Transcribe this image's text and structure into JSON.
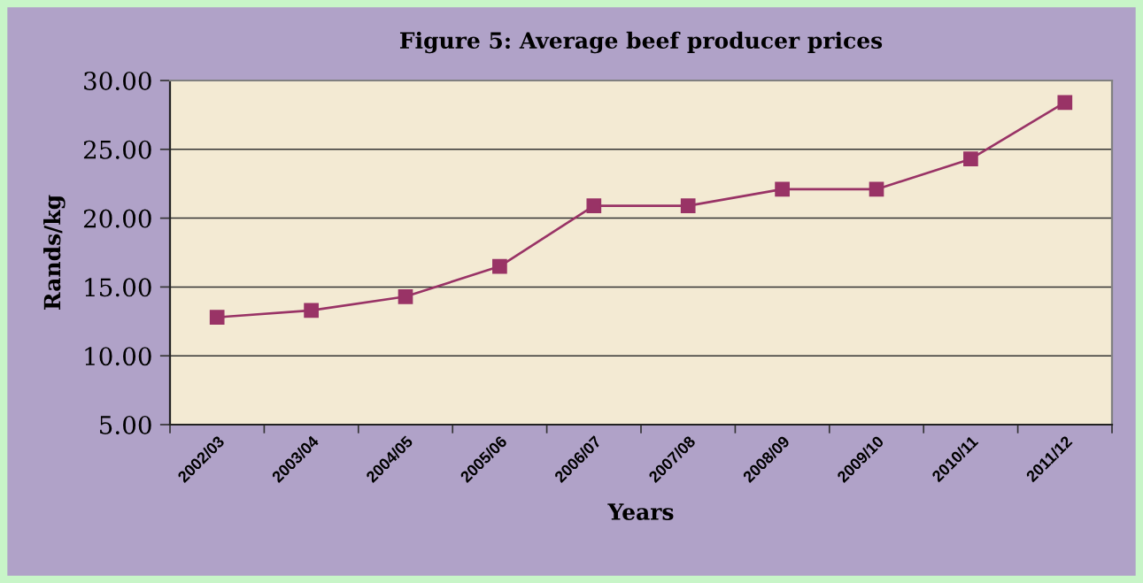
{
  "chart_data": {
    "type": "line",
    "title": "Figure 5: Average beef producer prices",
    "xlabel": "Years",
    "ylabel": "Rands/kg",
    "categories": [
      "2002/03",
      "2003/04",
      "2004/05",
      "2005/06",
      "2006/07",
      "2007/08",
      "2008/09",
      "2009/10",
      "2010/11",
      "2011/12"
    ],
    "series": [
      {
        "color": "#993366",
        "values": [
          12.8,
          13.3,
          14.3,
          16.5,
          20.9,
          20.9,
          22.1,
          22.1,
          24.3,
          28.4
        ]
      }
    ],
    "ylim": [
      5,
      30
    ],
    "yticks": [
      {
        "value": 5,
        "label": "5.00"
      },
      {
        "value": 10,
        "label": "10.00"
      },
      {
        "value": 15,
        "label": "15.00"
      },
      {
        "value": 20,
        "label": "20.00"
      },
      {
        "value": 25,
        "label": "25.00"
      },
      {
        "value": 30,
        "label": "30.00"
      }
    ],
    "grid": "y",
    "marker": "square",
    "line_style": "solid"
  }
}
